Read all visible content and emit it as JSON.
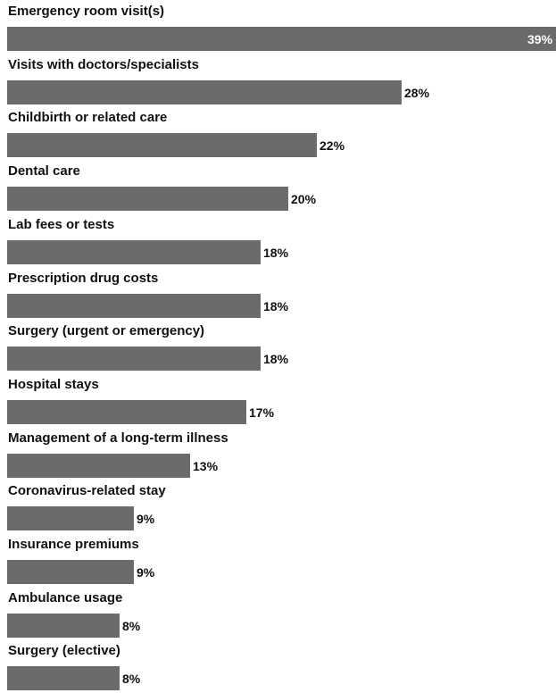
{
  "chart_data": {
    "type": "bar",
    "orientation": "horizontal",
    "title": "",
    "xlabel": "",
    "ylabel": "",
    "xlim": [
      0,
      39
    ],
    "grid": false,
    "legend": "none",
    "bar_color": "#6b6b6b",
    "value_suffix": "%",
    "categories": [
      "Emergency room visit(s)",
      "Visits with doctors/specialists",
      "Childbirth or related care",
      "Dental care",
      "Lab fees or tests",
      "Prescription drug costs",
      "Surgery (urgent or emergency)",
      "Hospital stays",
      "Management of a long-term illness",
      "Coronavirus-related stay",
      "Insurance premiums",
      "Ambulance usage",
      "Surgery (elective)"
    ],
    "values": [
      39,
      28,
      22,
      20,
      18,
      18,
      18,
      17,
      13,
      9,
      9,
      8,
      8
    ],
    "value_labels": [
      "39%",
      "28%",
      "22%",
      "20%",
      "18%",
      "18%",
      "18%",
      "17%",
      "13%",
      "9%",
      "9%",
      "8%",
      "8%"
    ]
  }
}
